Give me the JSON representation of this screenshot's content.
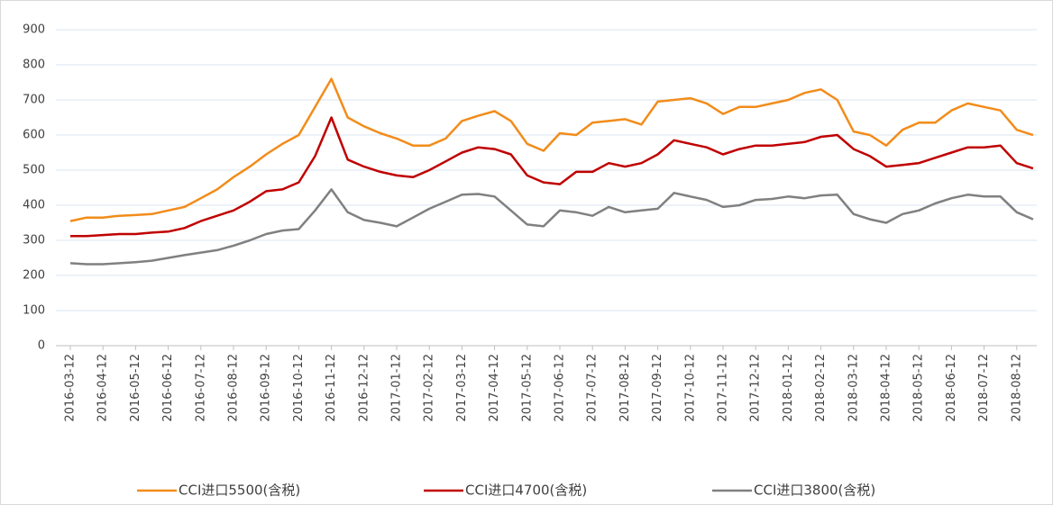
{
  "chart_data": {
    "type": "line",
    "categories": [
      "2016-03-12",
      null,
      "2016-04-12",
      null,
      "2016-05-12",
      null,
      "2016-06-12",
      null,
      "2016-07-12",
      null,
      "2016-08-12",
      null,
      "2016-09-12",
      null,
      "2016-10-12",
      null,
      "2016-11-12",
      null,
      "2016-12-12",
      null,
      "2017-01-12",
      null,
      "2017-02-12",
      null,
      "2017-03-12",
      null,
      "2017-04-12",
      null,
      "2017-05-12",
      null,
      "2017-06-12",
      null,
      "2017-07-12",
      null,
      "2017-08-12",
      null,
      "2017-09-12",
      null,
      "2017-10-12",
      null,
      "2017-11-12",
      null,
      "2017-12-12",
      null,
      "2018-01-12",
      null,
      "2018-02-12",
      null,
      "2018-03-12",
      null,
      "2018-04-12",
      null,
      "2018-05-12",
      null,
      "2018-06-12",
      null,
      "2018-07-12",
      null,
      "2018-08-12",
      null
    ],
    "series": [
      {
        "name": "CCI进口5500(含税)",
        "color": "#f28c1a",
        "values": [
          355,
          365,
          365,
          370,
          372,
          375,
          385,
          395,
          420,
          445,
          480,
          510,
          545,
          575,
          600,
          680,
          760,
          650,
          625,
          605,
          590,
          570,
          570,
          590,
          640,
          655,
          668,
          640,
          575,
          555,
          605,
          600,
          635,
          640,
          645,
          630,
          695,
          700,
          705,
          690,
          660,
          680,
          680,
          690,
          700,
          720,
          730,
          700,
          610,
          600,
          570,
          615,
          635,
          635,
          670,
          690,
          680,
          670,
          615,
          600
        ]
      },
      {
        "name": "CCI进口4700(含税)",
        "color": "#c00000",
        "values": [
          312,
          312,
          315,
          318,
          318,
          322,
          325,
          335,
          355,
          370,
          385,
          410,
          440,
          445,
          465,
          540,
          650,
          530,
          510,
          495,
          485,
          480,
          500,
          525,
          550,
          565,
          560,
          545,
          485,
          465,
          460,
          495,
          495,
          520,
          510,
          520,
          545,
          585,
          575,
          565,
          545,
          560,
          570,
          570,
          575,
          580,
          595,
          600,
          560,
          540,
          510,
          515,
          520,
          535,
          550,
          565,
          565,
          570,
          520,
          505
        ]
      },
      {
        "name": "CCI进口3800(含税)",
        "color": "#808080",
        "values": [
          235,
          232,
          232,
          235,
          238,
          242,
          250,
          258,
          265,
          272,
          285,
          300,
          318,
          328,
          332,
          385,
          445,
          380,
          358,
          350,
          340,
          365,
          390,
          410,
          430,
          432,
          425,
          385,
          345,
          340,
          385,
          380,
          370,
          395,
          380,
          385,
          390,
          435,
          425,
          415,
          395,
          400,
          415,
          418,
          425,
          420,
          428,
          430,
          375,
          360,
          350,
          375,
          385,
          405,
          420,
          430,
          425,
          425,
          380,
          360
        ]
      }
    ],
    "ylim": [
      0,
      900
    ],
    "yticks": [
      0,
      100,
      200,
      300,
      400,
      500,
      600,
      700,
      800,
      900
    ],
    "grid": true,
    "legend": "bottom"
  }
}
